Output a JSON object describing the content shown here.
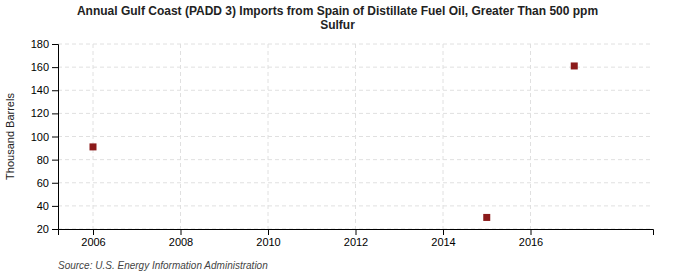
{
  "chart_data": {
    "type": "scatter",
    "title": "Annual Gulf Coast (PADD 3) Imports from Spain of Distillate Fuel Oil, Greater Than 500 ppm\nSulfur",
    "y_label": "Thousand Barrels",
    "source": "Source: U.S. Energy Information Administration",
    "x": [
      2006,
      2015,
      2017
    ],
    "values": [
      91,
      30,
      161
    ],
    "color": "#8b1a1a",
    "marker": "square",
    "xlim": [
      2005.2,
      2018.8
    ],
    "ylim": [
      20,
      180
    ],
    "xticks": [
      2006,
      2008,
      2010,
      2012,
      2014,
      2016
    ],
    "yticks": [
      20,
      40,
      60,
      80,
      100,
      120,
      140,
      160,
      180
    ],
    "grid": true
  }
}
